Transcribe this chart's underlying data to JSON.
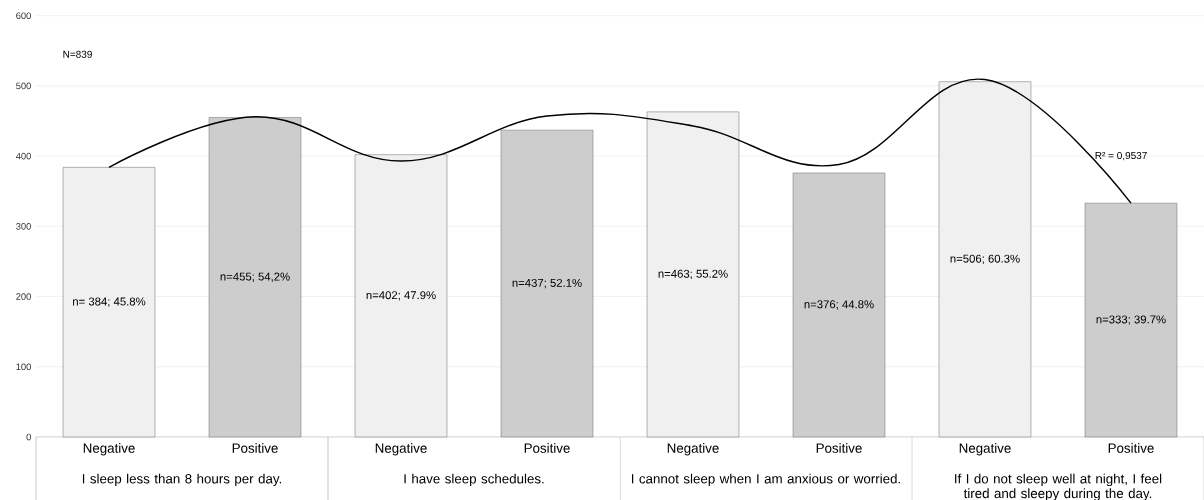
{
  "chart_data": {
    "type": "bar",
    "categories": [
      "Negative",
      "Positive",
      "Negative",
      "Positive",
      "Negative",
      "Positive",
      "Negative",
      "Positive"
    ],
    "series": [
      {
        "values": [
          384,
          455,
          402,
          437,
          463,
          376,
          506,
          333
        ],
        "colors": [
          "#f0f0f0",
          "#cdcdcd",
          "#f0f0f0",
          "#cdcdcd",
          "#f0f0f0",
          "#cdcdcd",
          "#f0f0f0",
          "#cdcdcd"
        ],
        "value_labels": [
          "n= 384; 45.8%",
          "n=455; 54,2%",
          "n=402; 47.9%",
          "n=437; 52.1%",
          "n=463; 55.2%",
          "n=376; 44.8%",
          "n=506; 60.3%",
          "n=333; 39.7%"
        ]
      },
      {
        "type": "line",
        "color": "#000000",
        "values": [
          384,
          456,
          393,
          457,
          443,
          388,
          509,
          333
        ]
      }
    ],
    "ylim": [
      0,
      600
    ],
    "yticks": [
      0,
      100,
      200,
      300,
      400,
      500,
      600
    ],
    "grid": "y",
    "marker": "none",
    "line_style": "solid",
    "legend": false,
    "annotations": [
      "N=839",
      "R² = 0,9537",
      "I sleep less than 8 hours per day.",
      "I have sleep schedules.",
      "I cannot sleep when I am anxious or worried.",
      "If I do not sleep well at night, I feel tired and sleepy during the day."
    ]
  }
}
